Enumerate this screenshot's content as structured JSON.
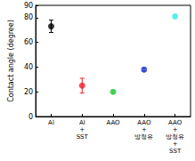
{
  "chart_data": {
    "type": "scatter",
    "categories": [
      "Al",
      "Al\n+\nSST",
      "AAO",
      "AAO\n+\n방청유",
      "AAO\n+\n방청유\n+\nSST"
    ],
    "values": [
      73,
      25,
      20,
      38,
      81
    ],
    "errors": [
      5,
      6,
      1,
      1.5,
      1
    ],
    "colors": [
      "#000000",
      "#e8202a",
      "#2ecc40",
      "#2a3fd6",
      "#3ef0e8"
    ],
    "marker": "circle",
    "y_label": "Contact angle (degree)",
    "ylim": [
      0,
      90
    ],
    "yticks": [
      0,
      20,
      40,
      60,
      80
    ],
    "grid": false
  }
}
